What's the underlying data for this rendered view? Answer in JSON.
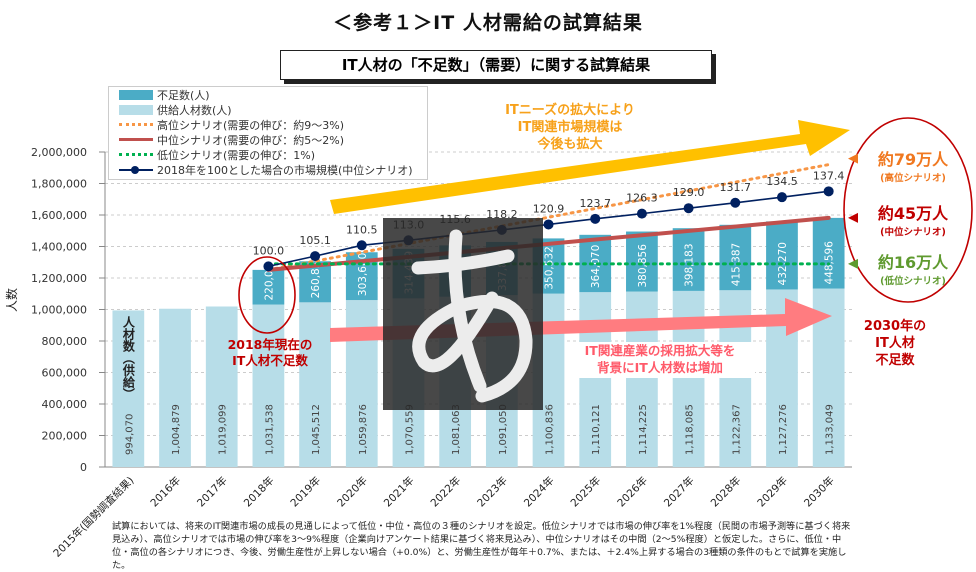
{
  "title": "＜参考１＞IT 人材需給の試算結果",
  "subtitle": "IT人材の「不足数」（需要）に関する試算結果",
  "legend": [
    {
      "label": "不足数(人)",
      "color": "#4bacc6"
    },
    {
      "label": "供給人材数(人)",
      "color": "#b7dde8"
    },
    {
      "label": "高位シナリオ(需要の伸び：約9～3%)",
      "color": "#f79646"
    },
    {
      "label": "中位シナリオ(需要の伸び：約5～2%)",
      "color": "#c0504d"
    },
    {
      "label": "低位シナリオ(需要の伸び：1%)",
      "color": "#00b050"
    },
    {
      "label": "2018年を100とした場合の市場規模(中位シナリオ)",
      "color": "#002060"
    }
  ],
  "annotations": {
    "it_needs": [
      "ITニーズの拡大により",
      "IT関連市場規模は",
      "今後も拡大"
    ],
    "supply_increase": [
      "IT関連産業の採用拡大等を",
      "背景にIT人材数は増加"
    ],
    "current_2018": [
      "2018年現在の",
      "IT人材不足数"
    ],
    "supply_bar_label": "人材数（供給）",
    "high": {
      "value": "約79万人",
      "label": "(高位シナリオ)"
    },
    "mid": {
      "value": "約45万人",
      "label": "(中位シナリオ)"
    },
    "low": {
      "value": "約16万人",
      "label": "(低位シナリオ)"
    },
    "shortage_2030": [
      "2030年の",
      "IT人材",
      "不足数"
    ]
  },
  "overlay_glyph": "あ",
  "note": "試算においては、将来のIT関連市場の成長の見通しによって低位・中位・高位の３種のシナリオを設定。低位シナリオでは市場の伸び率を1%程度（民間の市場予測等に基づく将来見込み）、高位シナリオでは市場の伸び率を3～9%程度（企業向けアンケート結果に基づく将来見込み）、中位シナリオはその中間（2～5%程度）と仮定した。さらに、低位・中位・高位の各シナリオにつき、今後、労働生産性が上昇しない場合（+0.0%）と、労働生産性が毎年＋0.7%、または、＋2.4%上昇する場合の3種類の条件のもとで試算を実施した。",
  "chart_data": {
    "type": "bar",
    "stacked": true,
    "ylabel": "人数",
    "ylim": [
      0,
      2000000
    ],
    "yticks": [
      "0",
      "200,000",
      "400,000",
      "600,000",
      "800,000",
      "1,000,000",
      "1,200,000",
      "1,400,000",
      "1,600,000",
      "1,800,000",
      "2,000,000"
    ],
    "grid": true,
    "legend_position": "top-left",
    "categories": [
      "2015年(国勢調査結果)",
      "2016年",
      "2017年",
      "2018年",
      "2019年",
      "2020年",
      "2021年",
      "2022年",
      "2023年",
      "2024年",
      "2025年",
      "2026年",
      "2027年",
      "2028年",
      "2029年",
      "2030年"
    ],
    "series": [
      {
        "name": "供給人材数(人)",
        "values": [
          994070,
          1004879,
          1019099,
          1031538,
          1045512,
          1059876,
          1070559,
          1081063,
          1091050,
          1100836,
          1110121,
          1114225,
          1118085,
          1122367,
          1127276,
          1133049
        ],
        "labels": [
          "994,070",
          "1,004,879",
          "1,019,099",
          "1,031,538",
          "1,045,512",
          "1,059,876",
          "1,070,559",
          "1,081,063",
          "1,091,050",
          "1,100,836",
          "1,110,121",
          "1,114,225",
          "1,118,085",
          "1,122,367",
          "1,127,276",
          "1,133,049"
        ]
      },
      {
        "name": "不足数(人)",
        "values": [
          null,
          null,
          null,
          220000,
          260835,
          303680,
          314439,
          326000,
          337848,
          350532,
          364070,
          380856,
          398183,
          415387,
          432270,
          448596
        ],
        "labels": [
          "",
          "",
          "",
          "220,000",
          "260,835",
          "303,680",
          "314,439",
          "",
          "337,848",
          "350,532",
          "364,070",
          "380,856",
          "398,183",
          "415,387",
          "432,270",
          "448,596"
        ]
      }
    ],
    "scenario_lines": [
      {
        "name": "高位シナリオ",
        "from": [
          "2018年",
          1251538
        ],
        "to": [
          "2030年",
          1920000
        ]
      },
      {
        "name": "中位シナリオ",
        "from": [
          "2018年",
          1251538
        ],
        "to": [
          "2030年",
          1581645
        ]
      },
      {
        "name": "低位シナリオ",
        "from": [
          "2018年",
          1290000
        ],
        "to": [
          "2030年",
          1290000
        ]
      }
    ],
    "market_index": {
      "name": "2018年を100とした場合の市場規模(中位シナリオ)",
      "axis": "secondary",
      "y2lim": [
        0,
        160
      ],
      "categories": [
        "2018年",
        "2019年",
        "2020年",
        "2021年",
        "2022年",
        "2023年",
        "2024年",
        "2025年",
        "2026年",
        "2027年",
        "2028年",
        "2029年",
        "2030年"
      ],
      "values": [
        100.0,
        105.1,
        110.5,
        113.0,
        115.6,
        118.2,
        120.9,
        123.7,
        126.3,
        129.0,
        131.7,
        134.5,
        137.4
      ],
      "labels": [
        "100.0",
        "105.1",
        "110.5",
        "113.0",
        "115.6",
        "118.2",
        "120.9",
        "123.7",
        "126.3",
        "129.0",
        "131.7",
        "134.5",
        "137.4"
      ]
    }
  }
}
